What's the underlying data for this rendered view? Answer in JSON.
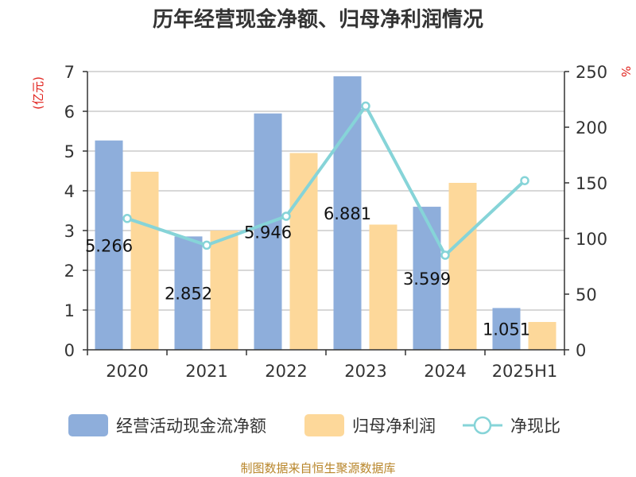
{
  "chart_data": {
    "type": "bar",
    "title": "历年经营现金净额、归母净利润情况",
    "categories": [
      "2020",
      "2021",
      "2022",
      "2023",
      "2024",
      "2025H1"
    ],
    "series": [
      {
        "name": "经营活动现金流净额",
        "type": "bar",
        "axis": "left",
        "color": "#8eaedb",
        "values": [
          5.266,
          2.852,
          5.946,
          6.881,
          3.599,
          1.051
        ],
        "labels": [
          "5.266",
          "2.852",
          "5.946",
          "6.881",
          "3.599",
          "1.051"
        ]
      },
      {
        "name": "归母净利润",
        "type": "bar",
        "axis": "left",
        "color": "#fdd89a",
        "values": [
          4.48,
          3.0,
          4.95,
          3.15,
          4.2,
          0.7
        ]
      },
      {
        "name": "净现比",
        "type": "line",
        "axis": "right",
        "color": "#86d4d8",
        "values": [
          118,
          94,
          120,
          219,
          85,
          152
        ]
      }
    ],
    "y_left": {
      "unit": "(亿元)",
      "min": 0,
      "max": 7,
      "ticks": [
        "0",
        "1",
        "2",
        "3",
        "4",
        "5",
        "6",
        "7"
      ]
    },
    "y_right": {
      "unit": "%",
      "min": 0,
      "max": 250,
      "ticks": [
        "0",
        "50",
        "100",
        "150",
        "200",
        "250"
      ]
    },
    "grid": true,
    "legend_position": "bottom"
  },
  "source": "制图数据来自恒生聚源数据库"
}
